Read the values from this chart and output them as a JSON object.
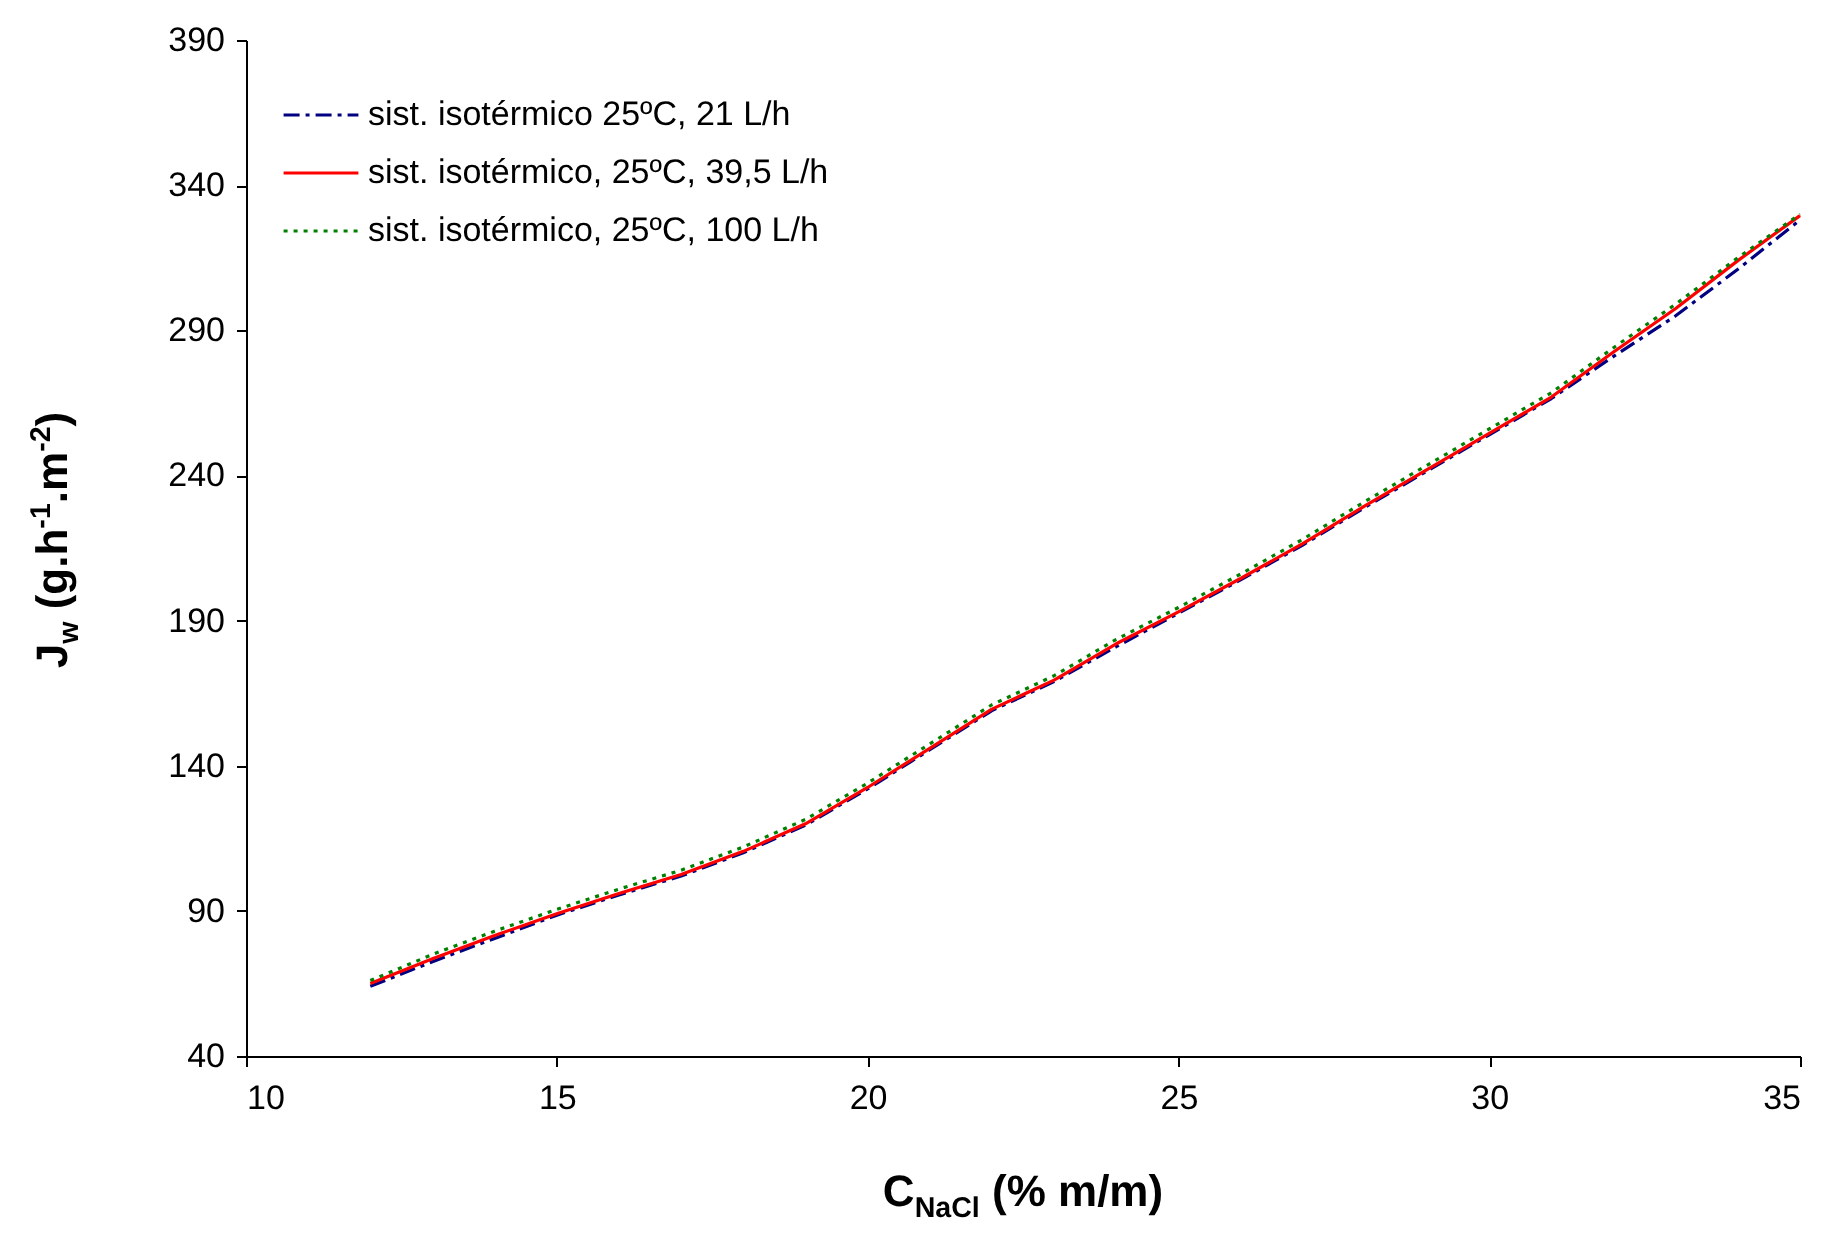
{
  "chart_data": {
    "type": "line",
    "xlabel": "C$_{NaCl}$ (% m/m)",
    "ylabel": "J$_{w}$ (g.h$^{-1}$.m$^{-2}$)",
    "x": [
      12,
      13,
      14,
      15,
      16,
      17,
      18,
      19,
      20,
      21,
      22,
      23,
      24,
      25,
      26,
      27,
      28,
      29,
      30,
      31,
      32,
      33,
      34,
      35
    ],
    "series": [
      {
        "name": "sist. isotérmico 25ºC, 21 L/h",
        "color": "#000080",
        "line_style": "dashed",
        "values": [
          64,
          72.5,
          80.5,
          88.5,
          95.5,
          102,
          110,
          119.5,
          132,
          145.5,
          159,
          169,
          181,
          192.5,
          204,
          216,
          229,
          241.5,
          254,
          266.5,
          281,
          295,
          311,
          328
        ]
      },
      {
        "name": "sist. isotérmico, 25ºC, 39,5 L/h",
        "color": "#ff0000",
        "line_style": "solid",
        "values": [
          65,
          73.5,
          81.5,
          89,
          96,
          102.5,
          110.5,
          120,
          132.5,
          146,
          159.5,
          169.5,
          182,
          193,
          204.5,
          216.5,
          229.5,
          242,
          254.5,
          267,
          282.5,
          297.5,
          314,
          329.5
        ]
      },
      {
        "name": "sist. isotérmico, 25ºC, 100 L/h",
        "color": "#008000",
        "line_style": "dotted",
        "values": [
          66,
          75,
          83,
          90.5,
          97.5,
          104,
          112,
          121.5,
          134,
          147.5,
          161,
          171,
          183.5,
          194.5,
          206,
          218,
          231,
          243.5,
          256,
          268.5,
          284,
          299,
          315,
          330
        ]
      }
    ],
    "xlim": [
      10,
      35
    ],
    "xticks": [
      10,
      15,
      20,
      25,
      30,
      35
    ],
    "ylim": [
      40,
      390
    ],
    "yticks": [
      40,
      90,
      140,
      190,
      240,
      290,
      340,
      390
    ],
    "grid": false,
    "legend": "top left"
  }
}
